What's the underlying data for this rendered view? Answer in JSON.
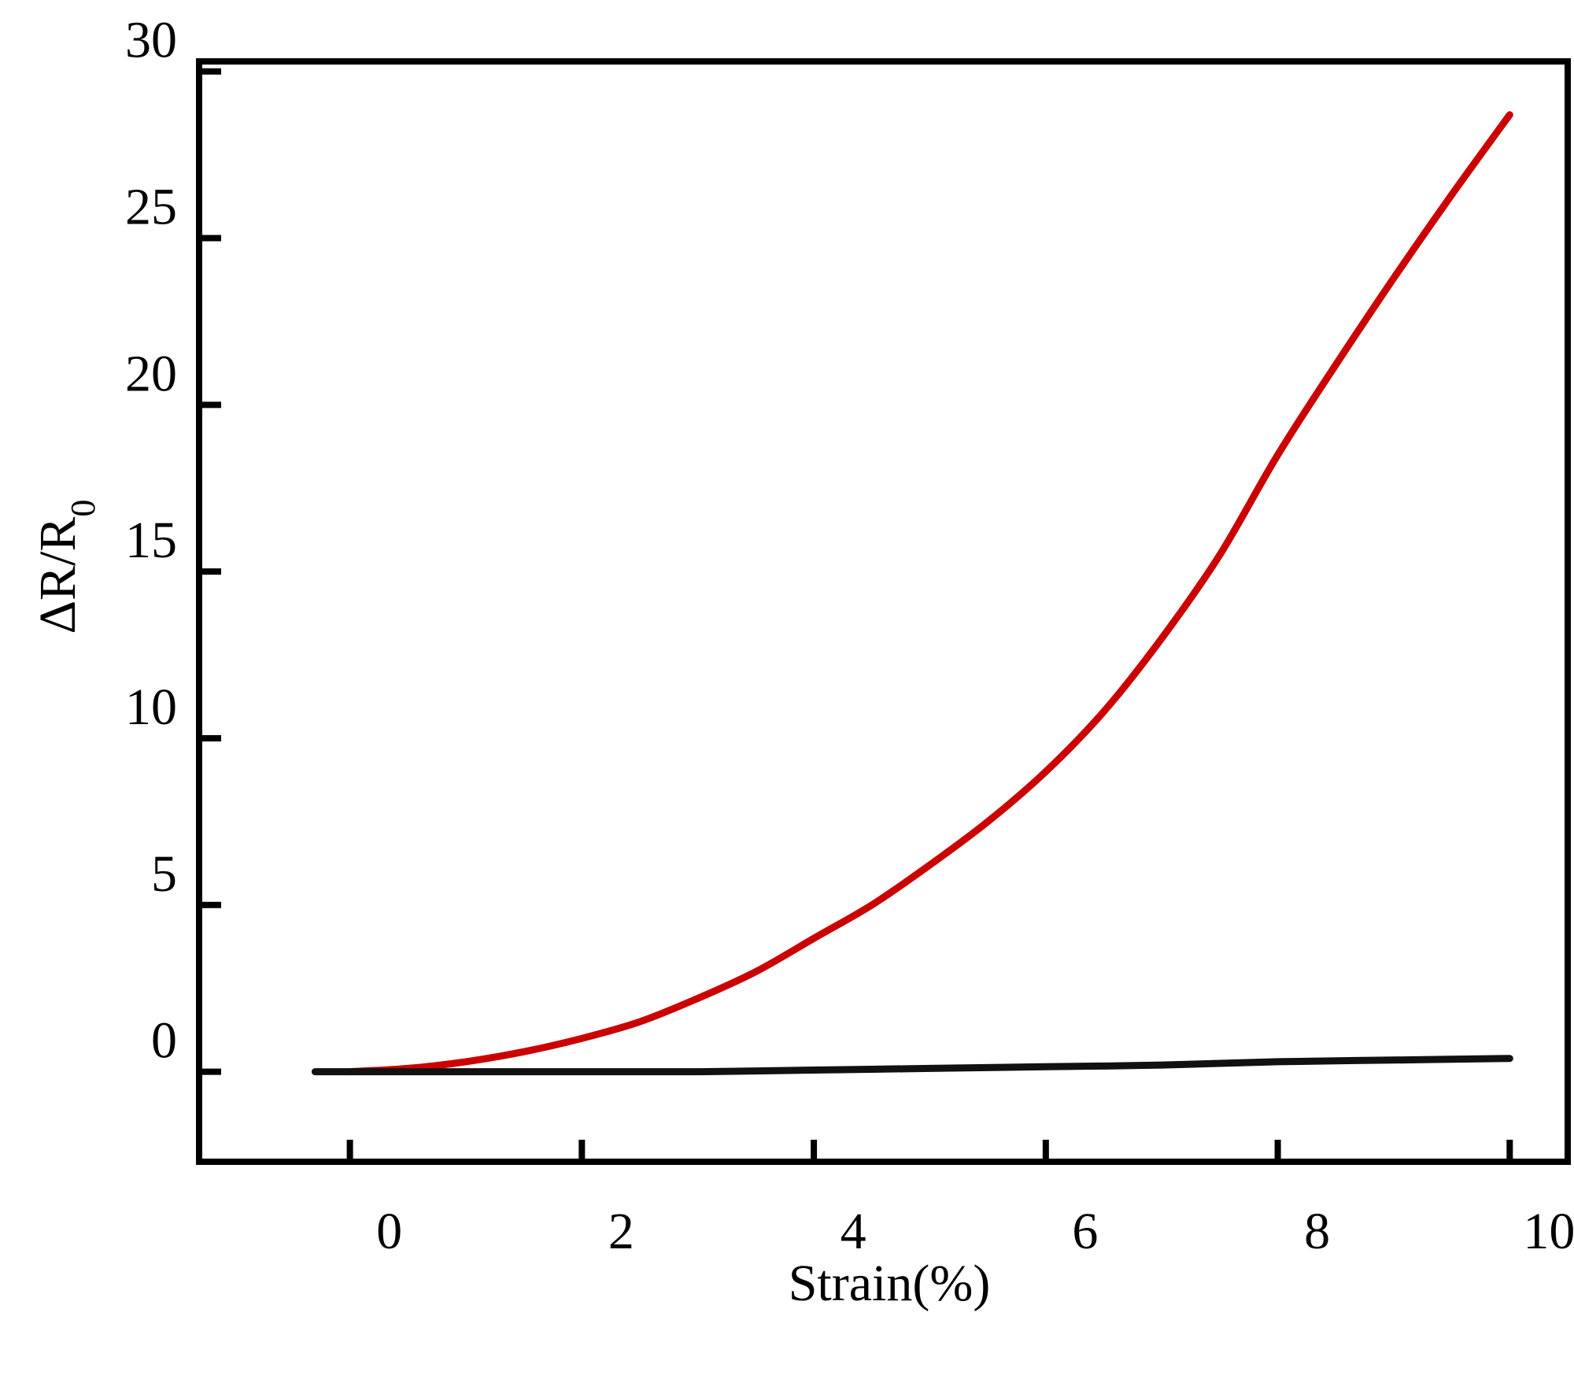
{
  "chart_data": {
    "type": "line",
    "xlabel": "Strain(%)",
    "ylabel": {
      "main": "ΔR/R",
      "subscript": "0"
    },
    "xlim": [
      -1.3,
      10.5
    ],
    "ylim": [
      -2.7,
      30.3
    ],
    "xticks": [
      0,
      2,
      4,
      6,
      8,
      10
    ],
    "yticks": [
      0,
      5,
      10,
      15,
      20,
      25,
      30
    ],
    "grid": false,
    "legend": "none",
    "series": [
      {
        "color": "#cc0000",
        "x": [
          0,
          0.5,
          1,
          1.5,
          2,
          2.5,
          3,
          3.5,
          4,
          4.5,
          5,
          5.5,
          6,
          6.5,
          7,
          7.5,
          8,
          8.5,
          9,
          9.5,
          10
        ],
        "y": [
          0,
          0.1,
          0.3,
          0.6,
          1.0,
          1.5,
          2.2,
          3.0,
          4.0,
          5.0,
          6.2,
          7.5,
          9.0,
          10.8,
          13.0,
          15.5,
          18.5,
          21.2,
          23.8,
          26.3,
          28.7
        ]
      },
      {
        "color": "#111111",
        "x": [
          -0.3,
          1,
          2,
          3,
          4,
          5,
          6,
          7,
          8,
          9,
          10
        ],
        "y": [
          0,
          0,
          0,
          0,
          0.05,
          0.1,
          0.15,
          0.2,
          0.3,
          0.35,
          0.4
        ]
      }
    ]
  }
}
